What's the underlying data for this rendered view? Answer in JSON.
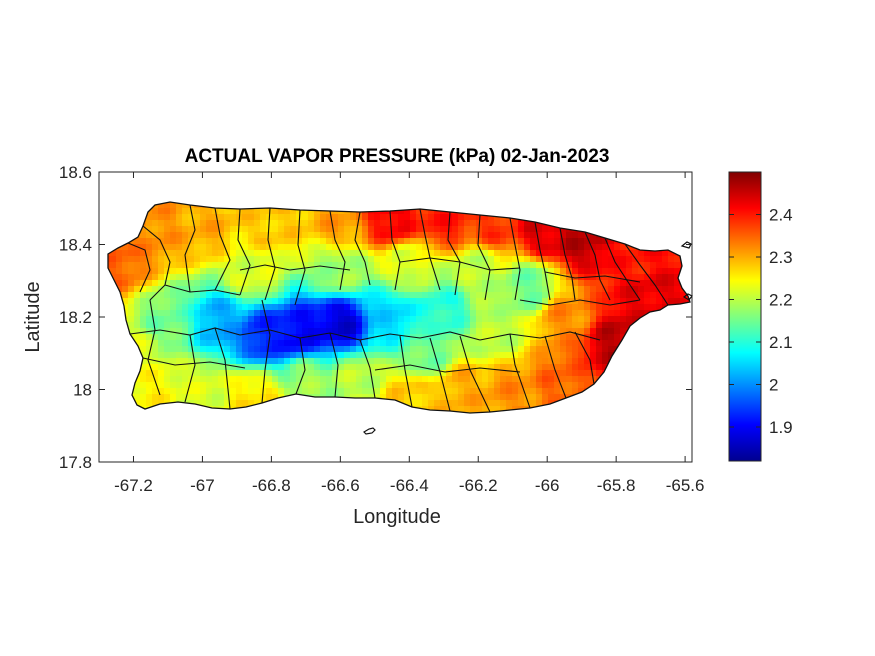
{
  "figure": {
    "title": "ACTUAL VAPOR PRESSURE (kPa) 02-Jan-2023",
    "xlabel": "Longitude",
    "ylabel": "Latitude"
  },
  "chart_data": {
    "type": "heatmap",
    "title": "ACTUAL VAPOR PRESSURE (kPa) 02-Jan-2023",
    "xlabel": "Longitude",
    "ylabel": "Latitude",
    "xlim": [
      -67.3,
      -65.58
    ],
    "ylim": [
      17.8,
      18.6
    ],
    "x_ticks": [
      -67.2,
      -67,
      -66.8,
      -66.6,
      -66.4,
      -66.2,
      -66,
      -65.8,
      -65.6
    ],
    "x_tick_labels": [
      "-67.2",
      "-67",
      "-66.8",
      "-66.6",
      "-66.4",
      "-66.2",
      "-66",
      "-65.8",
      "-65.6"
    ],
    "y_ticks": [
      17.8,
      18,
      18.2,
      18.4,
      18.6
    ],
    "y_tick_labels": [
      "17.8",
      "18",
      "18.2",
      "18.4",
      "18.6"
    ],
    "colorbar": {
      "colormap": "jet",
      "clim": [
        1.82,
        2.5
      ],
      "ticks": [
        1.9,
        2.0,
        2.1,
        2.2,
        2.3,
        2.4
      ],
      "tick_labels": [
        "1.9",
        "2",
        "2.1",
        "2.2",
        "2.3",
        "2.4"
      ]
    },
    "grid": false,
    "field_samples": [
      {
        "x": -67.25,
        "y": 18.36,
        "v": 2.35
      },
      {
        "x": -67.15,
        "y": 18.44,
        "v": 2.32
      },
      {
        "x": -67.0,
        "y": 18.45,
        "v": 2.3
      },
      {
        "x": -66.8,
        "y": 18.45,
        "v": 2.28
      },
      {
        "x": -66.6,
        "y": 18.46,
        "v": 2.31
      },
      {
        "x": -66.45,
        "y": 18.47,
        "v": 2.42
      },
      {
        "x": -66.3,
        "y": 18.47,
        "v": 2.4
      },
      {
        "x": -66.15,
        "y": 18.46,
        "v": 2.38
      },
      {
        "x": -66.0,
        "y": 18.44,
        "v": 2.44
      },
      {
        "x": -65.9,
        "y": 18.42,
        "v": 2.46
      },
      {
        "x": -65.75,
        "y": 18.37,
        "v": 2.4
      },
      {
        "x": -65.7,
        "y": 18.25,
        "v": 2.43
      },
      {
        "x": -65.8,
        "y": 18.12,
        "v": 2.46
      },
      {
        "x": -65.95,
        "y": 18.2,
        "v": 2.32
      },
      {
        "x": -66.05,
        "y": 18.28,
        "v": 2.15
      },
      {
        "x": -66.2,
        "y": 18.32,
        "v": 2.2
      },
      {
        "x": -66.3,
        "y": 18.22,
        "v": 2.1
      },
      {
        "x": -66.45,
        "y": 18.2,
        "v": 2.05
      },
      {
        "x": -66.6,
        "y": 18.18,
        "v": 1.88
      },
      {
        "x": -66.72,
        "y": 18.15,
        "v": 1.9
      },
      {
        "x": -66.82,
        "y": 18.15,
        "v": 1.93
      },
      {
        "x": -66.95,
        "y": 18.18,
        "v": 2.02
      },
      {
        "x": -67.1,
        "y": 18.18,
        "v": 2.15
      },
      {
        "x": -67.18,
        "y": 18.1,
        "v": 2.22
      },
      {
        "x": -67.15,
        "y": 18.0,
        "v": 2.25
      },
      {
        "x": -67.0,
        "y": 18.0,
        "v": 2.22
      },
      {
        "x": -66.85,
        "y": 17.98,
        "v": 2.26
      },
      {
        "x": -66.7,
        "y": 18.03,
        "v": 2.18
      },
      {
        "x": -66.55,
        "y": 18.03,
        "v": 2.2
      },
      {
        "x": -66.4,
        "y": 17.98,
        "v": 2.28
      },
      {
        "x": -66.25,
        "y": 18.0,
        "v": 2.3
      },
      {
        "x": -66.1,
        "y": 18.0,
        "v": 2.32
      },
      {
        "x": -65.95,
        "y": 18.02,
        "v": 2.35
      },
      {
        "x": -66.85,
        "y": 18.32,
        "v": 2.22
      },
      {
        "x": -66.6,
        "y": 18.33,
        "v": 2.18
      },
      {
        "x": -66.4,
        "y": 18.34,
        "v": 2.22
      },
      {
        "x": -66.15,
        "y": 18.15,
        "v": 2.2
      },
      {
        "x": -66.35,
        "y": 18.1,
        "v": 2.15
      }
    ]
  }
}
